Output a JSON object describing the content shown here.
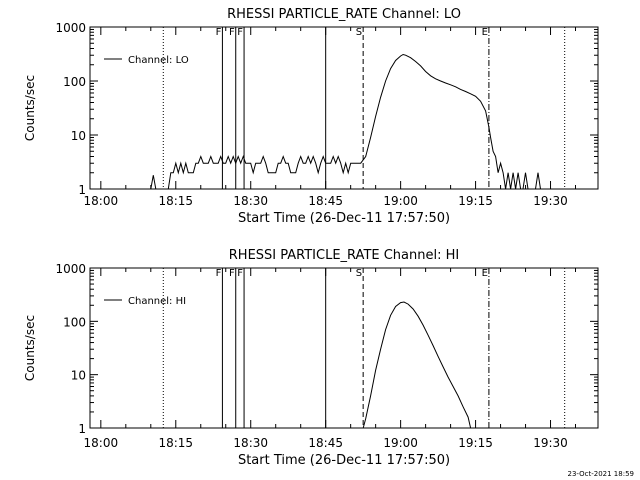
{
  "footer_timestamp": "23-Oct-2021 18:59",
  "chart_data": [
    {
      "type": "line",
      "title": "RHESSI PARTICLE_RATE Channel: LO",
      "xlabel": "Start Time (26-Dec-11 17:57:50)",
      "ylabel": "Counts/sec",
      "y_scale": "log",
      "ylim": [
        1,
        1000
      ],
      "xlim": [
        "17:57:50",
        "19:39:30"
      ],
      "x_tick_labels": [
        "18:00",
        "18:15",
        "18:30",
        "18:45",
        "19:00",
        "19:15",
        "19:30"
      ],
      "y_tick_labels": [
        "1",
        "10",
        "100",
        "1000"
      ],
      "legend": {
        "position": "top-left",
        "entries": [
          "Channel: LO"
        ]
      },
      "markers": [
        {
          "time": "18:12:30",
          "style": "dotted",
          "label": ""
        },
        {
          "time": "18:24:20",
          "style": "solid",
          "label": "F"
        },
        {
          "time": "18:27:00",
          "style": "solid",
          "label": "F"
        },
        {
          "time": "18:28:40",
          "style": "solid",
          "label": "F"
        },
        {
          "time": "18:45:00",
          "style": "solid",
          "label": ""
        },
        {
          "time": "18:52:30",
          "style": "dashed",
          "label": "S"
        },
        {
          "time": "19:17:40",
          "style": "dashdot",
          "label": "E"
        },
        {
          "time": "19:32:50",
          "style": "dotted",
          "label": ""
        }
      ],
      "series": [
        {
          "name": "Channel: LO",
          "points": [
            [
              "18:10:00",
              1
            ],
            [
              "18:10:30",
              1.8
            ],
            [
              "18:11:00",
              1
            ],
            [
              "18:13:30",
              1
            ],
            [
              "18:14:00",
              2
            ],
            [
              "18:14:30",
              2
            ],
            [
              "18:15:00",
              3
            ],
            [
              "18:15:30",
              2
            ],
            [
              "18:16:00",
              3
            ],
            [
              "18:16:30",
              2
            ],
            [
              "18:17:00",
              3
            ],
            [
              "18:17:30",
              2
            ],
            [
              "18:18:30",
              2
            ],
            [
              "18:19:00",
              3
            ],
            [
              "18:19:30",
              3
            ],
            [
              "18:20:00",
              4
            ],
            [
              "18:20:30",
              3
            ],
            [
              "18:21:30",
              3
            ],
            [
              "18:22:00",
              4
            ],
            [
              "18:22:30",
              3
            ],
            [
              "18:23:30",
              3
            ],
            [
              "18:24:00",
              4
            ],
            [
              "18:24:30",
              3
            ],
            [
              "18:25:00",
              3
            ],
            [
              "18:25:30",
              4
            ],
            [
              "18:26:00",
              3
            ],
            [
              "18:26:30",
              4
            ],
            [
              "18:27:00",
              3
            ],
            [
              "18:27:30",
              4
            ],
            [
              "18:28:00",
              3
            ],
            [
              "18:28:30",
              4
            ],
            [
              "18:29:00",
              3
            ],
            [
              "18:30:00",
              3
            ],
            [
              "18:30:30",
              2
            ],
            [
              "18:31:00",
              3
            ],
            [
              "18:32:00",
              3
            ],
            [
              "18:32:30",
              4
            ],
            [
              "18:33:00",
              3
            ],
            [
              "18:33:30",
              2
            ],
            [
              "18:35:00",
              2
            ],
            [
              "18:35:30",
              3
            ],
            [
              "18:36:00",
              3
            ],
            [
              "18:36:30",
              4
            ],
            [
              "18:37:00",
              3
            ],
            [
              "18:37:30",
              3
            ],
            [
              "18:38:00",
              2
            ],
            [
              "18:39:00",
              2
            ],
            [
              "18:39:30",
              3
            ],
            [
              "18:40:00",
              4
            ],
            [
              "18:40:30",
              3
            ],
            [
              "18:41:00",
              3
            ],
            [
              "18:41:30",
              4
            ],
            [
              "18:42:00",
              3
            ],
            [
              "18:42:30",
              4
            ],
            [
              "18:43:00",
              3
            ],
            [
              "18:43:30",
              2
            ],
            [
              "18:44:00",
              3
            ],
            [
              "18:44:30",
              4
            ],
            [
              "18:45:00",
              3
            ],
            [
              "18:46:00",
              3
            ],
            [
              "18:46:30",
              4
            ],
            [
              "18:47:00",
              3
            ],
            [
              "18:47:30",
              4
            ],
            [
              "18:48:00",
              3
            ],
            [
              "18:48:30",
              2
            ],
            [
              "18:49:00",
              3
            ],
            [
              "18:49:30",
              2
            ],
            [
              "18:50:00",
              3
            ],
            [
              "18:50:30",
              3
            ],
            [
              "18:51:00",
              3
            ],
            [
              "18:52:00",
              3
            ],
            [
              "18:53:00",
              4
            ],
            [
              "18:54:00",
              9
            ],
            [
              "18:55:00",
              22
            ],
            [
              "18:56:00",
              50
            ],
            [
              "18:57:00",
              100
            ],
            [
              "18:58:00",
              170
            ],
            [
              "18:59:00",
              240
            ],
            [
              "19:00:00",
              290
            ],
            [
              "19:00:30",
              310
            ],
            [
              "19:01:00",
              300
            ],
            [
              "19:02:00",
              270
            ],
            [
              "19:03:00",
              230
            ],
            [
              "19:04:00",
              190
            ],
            [
              "19:05:00",
              150
            ],
            [
              "19:06:00",
              125
            ],
            [
              "19:07:00",
              110
            ],
            [
              "19:08:00",
              100
            ],
            [
              "19:09:00",
              92
            ],
            [
              "19:10:00",
              85
            ],
            [
              "19:11:00",
              78
            ],
            [
              "19:12:00",
              70
            ],
            [
              "19:13:00",
              64
            ],
            [
              "19:14:00",
              58
            ],
            [
              "19:15:00",
              52
            ],
            [
              "19:16:00",
              42
            ],
            [
              "19:17:00",
              28
            ],
            [
              "19:17:40",
              14
            ],
            [
              "19:18:00",
              9
            ],
            [
              "19:18:30",
              5
            ],
            [
              "19:19:00",
              4
            ],
            [
              "19:19:30",
              2
            ],
            [
              "19:20:00",
              3
            ],
            [
              "19:20:30",
              2
            ],
            [
              "19:21:00",
              1
            ],
            [
              "19:21:30",
              2
            ],
            [
              "19:22:00",
              1
            ],
            [
              "19:22:30",
              2
            ],
            [
              "19:23:00",
              1
            ],
            [
              "19:23:30",
              2
            ],
            [
              "19:24:00",
              1
            ],
            [
              "19:24:30",
              1
            ],
            [
              "19:25:00",
              2
            ],
            [
              "19:25:30",
              1
            ],
            [
              "19:27:00",
              1
            ],
            [
              "19:27:30",
              2
            ],
            [
              "19:28:00",
              1
            ]
          ]
        }
      ]
    },
    {
      "type": "line",
      "title": "RHESSI PARTICLE_RATE Channel: HI",
      "xlabel": "Start Time (26-Dec-11 17:57:50)",
      "ylabel": "Counts/sec",
      "y_scale": "log",
      "ylim": [
        1,
        1000
      ],
      "xlim": [
        "17:57:50",
        "19:39:30"
      ],
      "x_tick_labels": [
        "18:00",
        "18:15",
        "18:30",
        "18:45",
        "19:00",
        "19:15",
        "19:30"
      ],
      "y_tick_labels": [
        "1",
        "10",
        "100",
        "1000"
      ],
      "legend": {
        "position": "top-left",
        "entries": [
          "Channel: HI"
        ]
      },
      "markers": [
        {
          "time": "18:12:30",
          "style": "dotted",
          "label": ""
        },
        {
          "time": "18:24:20",
          "style": "solid",
          "label": "F"
        },
        {
          "time": "18:27:00",
          "style": "solid",
          "label": "F"
        },
        {
          "time": "18:28:40",
          "style": "solid",
          "label": "F"
        },
        {
          "time": "18:45:00",
          "style": "solid",
          "label": ""
        },
        {
          "time": "18:52:30",
          "style": "dashed",
          "label": "S"
        },
        {
          "time": "19:17:40",
          "style": "dashdot",
          "label": "E"
        },
        {
          "time": "19:32:50",
          "style": "dotted",
          "label": ""
        }
      ],
      "series": [
        {
          "name": "Channel: HI",
          "points": [
            [
              "18:52:30",
              1
            ],
            [
              "18:53:00",
              1.5
            ],
            [
              "18:54:00",
              4
            ],
            [
              "18:55:00",
              12
            ],
            [
              "18:56:00",
              30
            ],
            [
              "18:57:00",
              70
            ],
            [
              "18:58:00",
              130
            ],
            [
              "18:59:00",
              190
            ],
            [
              "19:00:00",
              225
            ],
            [
              "19:00:40",
              230
            ],
            [
              "19:01:30",
              210
            ],
            [
              "19:02:30",
              170
            ],
            [
              "19:03:30",
              125
            ],
            [
              "19:04:30",
              85
            ],
            [
              "19:05:30",
              55
            ],
            [
              "19:06:30",
              35
            ],
            [
              "19:07:30",
              22
            ],
            [
              "19:08:30",
              14
            ],
            [
              "19:09:30",
              9
            ],
            [
              "19:10:30",
              6
            ],
            [
              "19:11:30",
              4
            ],
            [
              "19:12:30",
              2.5
            ],
            [
              "19:13:30",
              1.6
            ],
            [
              "19:14:00",
              1
            ]
          ]
        }
      ]
    }
  ]
}
